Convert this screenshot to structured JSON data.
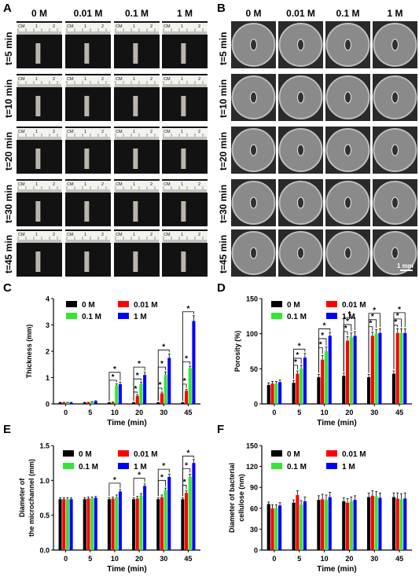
{
  "panel_letters": [
    "A",
    "B",
    "C",
    "D",
    "E",
    "F"
  ],
  "photo_panels": {
    "A": {
      "columns": [
        "0 M",
        "0.01 M",
        "0.1 M",
        "1 M"
      ],
      "rows": [
        "t=5 min",
        "t=10 min",
        "t=20 min",
        "t=30 min",
        "t=45 min"
      ],
      "ruler_text": {
        "cm": "CM",
        "one": "1",
        "two": "2"
      }
    },
    "B": {
      "columns": [
        "0 M",
        "0.01 M",
        "0.1 M",
        "1 M"
      ],
      "rows": [
        "t=5 min",
        "t=10 min",
        "t=20 min",
        "t=30 min",
        "t=45 min"
      ],
      "scale_bar": "1 mm"
    }
  },
  "colors": {
    "0 M": "#000000",
    "0.01 M": "#ff0000",
    "0.1 M": "#33e633",
    "1 M": "#0000ff"
  },
  "chart_data": [
    {
      "panel": "C",
      "type": "bar",
      "categories": [
        "0",
        "5",
        "10",
        "20",
        "30",
        "45"
      ],
      "xlabel": "Time (min)",
      "ylabel": [
        "Thickness (mm)"
      ],
      "ylim": [
        0,
        4
      ],
      "yticks": [
        0,
        1,
        2,
        3,
        4
      ],
      "legend_position": "top-left",
      "series": [
        {
          "name": "0 M",
          "values": [
            0.05,
            0.05,
            0.05,
            0.05,
            0.05,
            0.05
          ],
          "errors": [
            0.01,
            0.01,
            0.01,
            0.01,
            0.01,
            0.01
          ]
        },
        {
          "name": "0.01 M",
          "values": [
            0.05,
            0.05,
            0.05,
            0.3,
            0.4,
            0.5
          ],
          "errors": [
            0.01,
            0.01,
            0.02,
            0.05,
            0.05,
            0.05
          ]
        },
        {
          "name": "0.1 M",
          "values": [
            0.05,
            0.07,
            0.7,
            0.75,
            1.1,
            1.35
          ],
          "errors": [
            0.01,
            0.02,
            0.06,
            0.08,
            0.12,
            0.08
          ]
        },
        {
          "name": "1 M",
          "values": [
            0.05,
            0.1,
            0.75,
            1.1,
            1.75,
            3.15
          ],
          "errors": [
            0.01,
            0.02,
            0.08,
            0.1,
            0.15,
            0.2
          ]
        }
      ],
      "significance": [
        {
          "cat": 2,
          "from": 0,
          "to": 2,
          "level": 0.9,
          "label": "*"
        },
        {
          "cat": 2,
          "from": 0,
          "to": 3,
          "level": 1.2,
          "label": "*"
        },
        {
          "cat": 3,
          "from": 0,
          "to": 1,
          "level": 0.45,
          "label": "*"
        },
        {
          "cat": 3,
          "from": 0,
          "to": 2,
          "level": 0.95,
          "label": "*"
        },
        {
          "cat": 3,
          "from": 0,
          "to": 3,
          "level": 1.4,
          "label": "*"
        },
        {
          "cat": 4,
          "from": 0,
          "to": 1,
          "level": 0.6,
          "label": "*"
        },
        {
          "cat": 4,
          "from": 0,
          "to": 2,
          "level": 1.4,
          "label": "*"
        },
        {
          "cat": 4,
          "from": 0,
          "to": 3,
          "level": 2.05,
          "label": "*"
        },
        {
          "cat": 5,
          "from": 0,
          "to": 1,
          "level": 0.75,
          "label": "*"
        },
        {
          "cat": 5,
          "from": 0,
          "to": 2,
          "level": 1.6,
          "label": "*"
        },
        {
          "cat": 5,
          "from": 0,
          "to": 3,
          "level": 3.5,
          "label": "*"
        }
      ]
    },
    {
      "panel": "D",
      "type": "bar",
      "categories": [
        "0",
        "5",
        "10",
        "20",
        "30",
        "45"
      ],
      "xlabel": "Time (min)",
      "ylabel": [
        "Porosity (%)"
      ],
      "ylim": [
        0,
        150
      ],
      "yticks": [
        0,
        50,
        100,
        150
      ],
      "legend_position": "top-left",
      "series": [
        {
          "name": "0 M",
          "values": [
            27,
            30,
            38,
            40,
            38,
            43
          ],
          "errors": [
            3,
            3,
            4,
            4,
            4,
            4
          ]
        },
        {
          "name": "0.01 M",
          "values": [
            29,
            43,
            63,
            90,
            97,
            101
          ],
          "errors": [
            3,
            4,
            6,
            6,
            5,
            6
          ]
        },
        {
          "name": "0.1 M",
          "values": [
            29,
            50,
            75,
            95,
            100,
            101
          ],
          "errors": [
            3,
            5,
            6,
            6,
            6,
            6
          ]
        },
        {
          "name": "1 M",
          "values": [
            31,
            66,
            97,
            97,
            101,
            101
          ],
          "errors": [
            3,
            6,
            5,
            6,
            6,
            6
          ]
        }
      ],
      "significance": [
        {
          "cat": 1,
          "from": 0,
          "to": 1,
          "level": 55,
          "label": "*"
        },
        {
          "cat": 1,
          "from": 0,
          "to": 2,
          "level": 65,
          "label": "*"
        },
        {
          "cat": 1,
          "from": 0,
          "to": 3,
          "level": 78,
          "label": "*"
        },
        {
          "cat": 2,
          "from": 0,
          "to": 1,
          "level": 80,
          "label": "*"
        },
        {
          "cat": 2,
          "from": 0,
          "to": 2,
          "level": 93,
          "label": "*"
        },
        {
          "cat": 2,
          "from": 0,
          "to": 3,
          "level": 107,
          "label": "*"
        },
        {
          "cat": 3,
          "from": 0,
          "to": 1,
          "level": 103,
          "label": "*"
        },
        {
          "cat": 3,
          "from": 0,
          "to": 2,
          "level": 113,
          "label": "*"
        },
        {
          "cat": 3,
          "from": 0,
          "to": 3,
          "level": 123,
          "label": "*"
        },
        {
          "cat": 4,
          "from": 0,
          "to": 1,
          "level": 110,
          "label": "*"
        },
        {
          "cat": 4,
          "from": 0,
          "to": 2,
          "level": 120,
          "label": "*"
        },
        {
          "cat": 4,
          "from": 0,
          "to": 3,
          "level": 129,
          "label": "*"
        },
        {
          "cat": 5,
          "from": 0,
          "to": 1,
          "level": 112,
          "label": "*"
        },
        {
          "cat": 5,
          "from": 0,
          "to": 2,
          "level": 121,
          "label": "*"
        },
        {
          "cat": 5,
          "from": 0,
          "to": 3,
          "level": 130,
          "label": "*"
        }
      ]
    },
    {
      "panel": "E",
      "type": "bar",
      "categories": [
        "0",
        "5",
        "10",
        "20",
        "30",
        "45"
      ],
      "xlabel": "Time (min)",
      "ylabel": [
        "Diameter of",
        "the microchannel (mm)"
      ],
      "ylim": [
        0,
        1.5
      ],
      "yticks": [
        0.0,
        0.5,
        1.0,
        1.5
      ],
      "legend_position": "top-left",
      "series": [
        {
          "name": "0 M",
          "values": [
            0.73,
            0.73,
            0.73,
            0.73,
            0.73,
            0.73
          ],
          "errors": [
            0.02,
            0.02,
            0.02,
            0.02,
            0.02,
            0.02
          ]
        },
        {
          "name": "0.01 M",
          "values": [
            0.73,
            0.74,
            0.74,
            0.74,
            0.76,
            0.82
          ],
          "errors": [
            0.02,
            0.02,
            0.02,
            0.03,
            0.03,
            0.03
          ]
        },
        {
          "name": "0.1 M",
          "values": [
            0.73,
            0.74,
            0.76,
            0.78,
            0.86,
            1.05
          ],
          "errors": [
            0.02,
            0.02,
            0.03,
            0.03,
            0.03,
            0.04
          ]
        },
        {
          "name": "1 M",
          "values": [
            0.73,
            0.75,
            0.84,
            0.92,
            1.05,
            1.25
          ],
          "errors": [
            0.02,
            0.02,
            0.03,
            0.03,
            0.04,
            0.05
          ]
        }
      ],
      "significance": [
        {
          "cat": 2,
          "from": 0,
          "to": 3,
          "level": 0.96,
          "label": "*"
        },
        {
          "cat": 3,
          "from": 0,
          "to": 3,
          "level": 1.03,
          "label": "*"
        },
        {
          "cat": 4,
          "from": 0,
          "to": 2,
          "level": 1.0,
          "label": "*"
        },
        {
          "cat": 4,
          "from": 0,
          "to": 3,
          "level": 1.16,
          "label": "*"
        },
        {
          "cat": 5,
          "from": 0,
          "to": 1,
          "level": 0.93,
          "label": "*"
        },
        {
          "cat": 5,
          "from": 0,
          "to": 2,
          "level": 1.17,
          "label": "*"
        },
        {
          "cat": 5,
          "from": 0,
          "to": 3,
          "level": 1.35,
          "label": "*"
        }
      ]
    },
    {
      "panel": "F",
      "type": "bar",
      "categories": [
        "0",
        "5",
        "10",
        "20",
        "30",
        "45"
      ],
      "xlabel": "Time (min)",
      "ylabel": [
        "Diameter of bacterial",
        "cellulose (nm)"
      ],
      "ylim": [
        0,
        150
      ],
      "yticks": [
        0,
        30,
        60,
        90,
        120,
        150
      ],
      "legend_position": "top-left",
      "series": [
        {
          "name": "0 M",
          "values": [
            66,
            68,
            72,
            70,
            76,
            76
          ],
          "errors": [
            3,
            4,
            6,
            5,
            6,
            6
          ]
        },
        {
          "name": "0.01 M",
          "values": [
            60,
            79,
            73,
            68,
            78,
            74
          ],
          "errors": [
            5,
            6,
            7,
            6,
            7,
            8
          ]
        },
        {
          "name": "0.1 M",
          "values": [
            60,
            65,
            72,
            70,
            77,
            73
          ],
          "errors": [
            5,
            6,
            7,
            6,
            7,
            8
          ]
        },
        {
          "name": "1 M",
          "values": [
            64,
            70,
            76,
            72,
            75,
            74
          ],
          "errors": [
            4,
            6,
            7,
            6,
            7,
            8
          ]
        }
      ],
      "significance": []
    }
  ]
}
